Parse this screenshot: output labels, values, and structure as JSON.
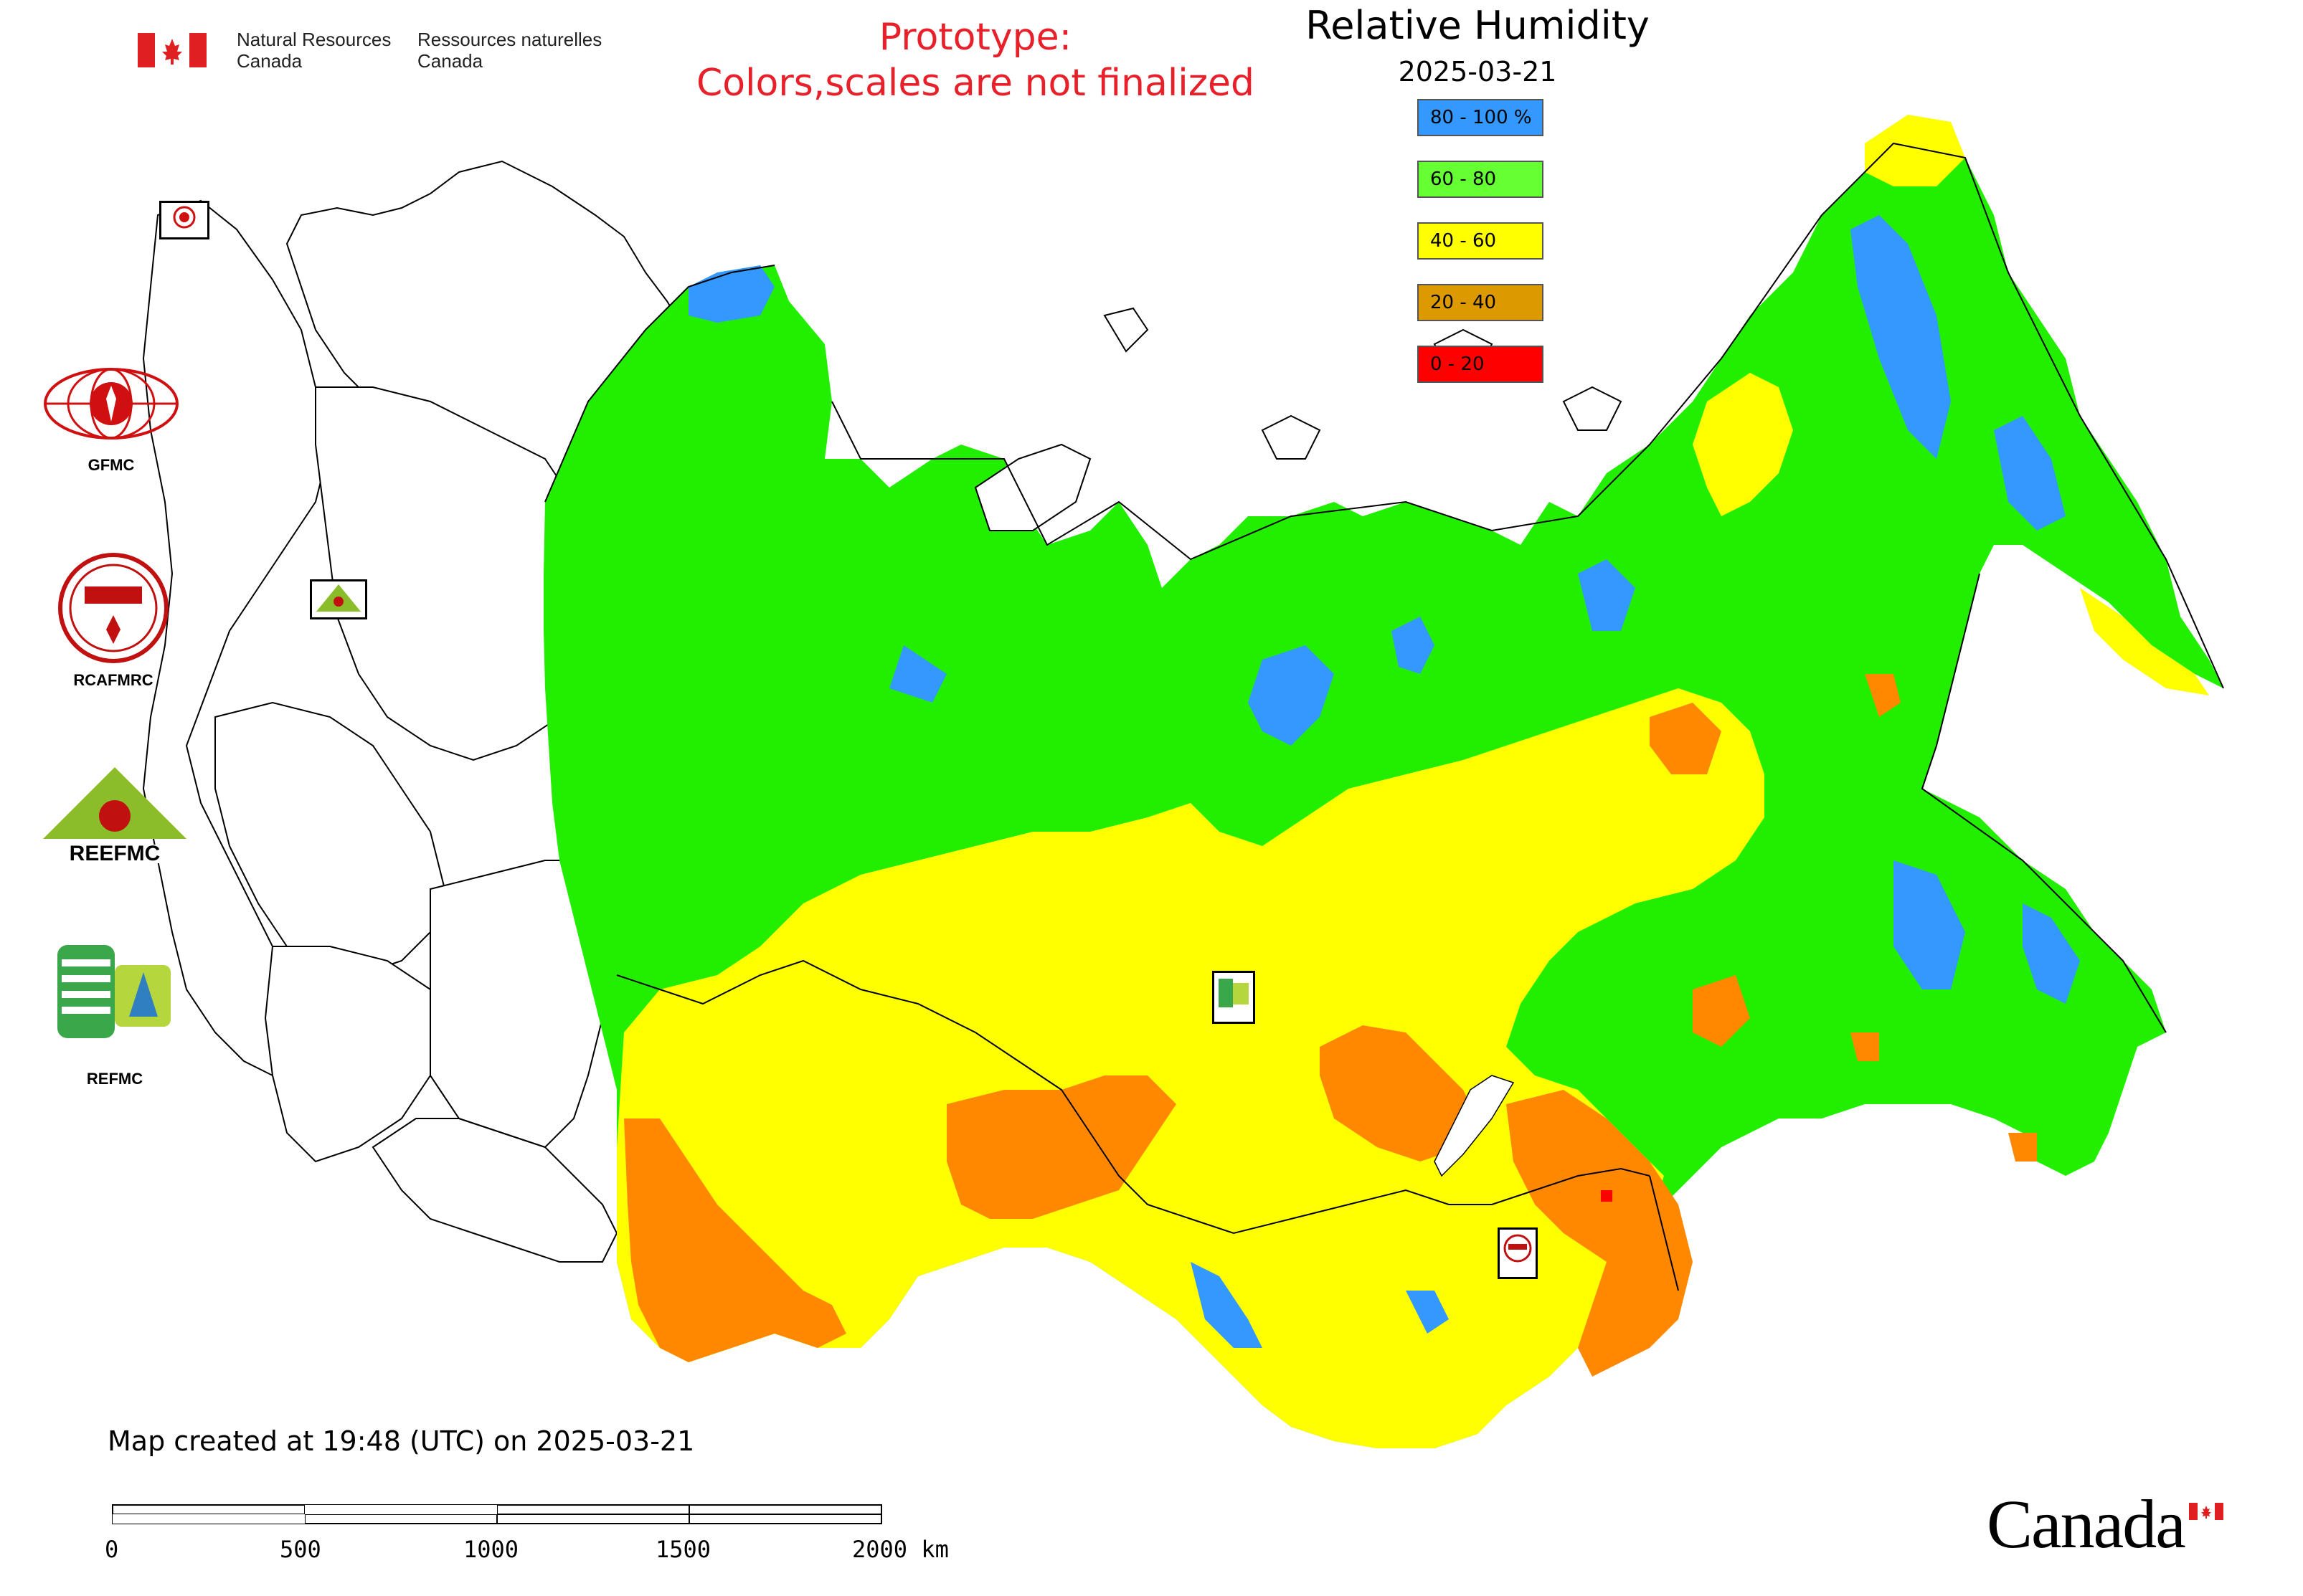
{
  "header": {
    "agency_en_line1": "Natural Resources",
    "agency_en_line2": "Canada",
    "agency_fr_line1": "Ressources naturelles",
    "agency_fr_line2": "Canada",
    "prototype_line1": "Prototype:",
    "prototype_line2": "Colors,scales are not finalized"
  },
  "map": {
    "title": "Relative Humidity",
    "date": "2025-03-21",
    "legend": [
      {
        "label": "80 - 100 %",
        "color": "#3399ff"
      },
      {
        "label": "60 - 80",
        "color": "#66ff33"
      },
      {
        "label": "40 - 60",
        "color": "#ffff00"
      },
      {
        "label": "20 - 40",
        "color": "#dd9900"
      },
      {
        "label": "0 - 20",
        "color": "#ff0000"
      }
    ],
    "colors": {
      "very_humid": "#3399ff",
      "humid": "#22ee00",
      "moderate": "#ffff00",
      "dry": "#ff8800",
      "very_dry": "#ff0000",
      "border": "#000000"
    }
  },
  "organizations": [
    {
      "label": "GFMC",
      "icon": "gfmc-logo"
    },
    {
      "label": "RCAFMRC",
      "icon": "rcafmrc-logo"
    },
    {
      "label": "",
      "icon": "reefmc-logo",
      "logo_text": "REEFMC"
    },
    {
      "label": "REFMC",
      "icon": "refmc-logo"
    }
  ],
  "markers": [
    {
      "label": "GFMC",
      "icon": "gfmc-marker"
    },
    {
      "label": "REEFMC",
      "icon": "reefmc-marker"
    },
    {
      "label": "REFMC",
      "icon": "refmc-marker"
    },
    {
      "label": "RCAFMRC",
      "icon": "rcafmrc-marker"
    }
  ],
  "footer": {
    "created": "Map created at 19:48 (UTC) on 2025-03-21",
    "scale_labels": [
      "0",
      "500",
      "1000",
      "1500",
      "2000 km"
    ],
    "wordmark": "Canada"
  }
}
